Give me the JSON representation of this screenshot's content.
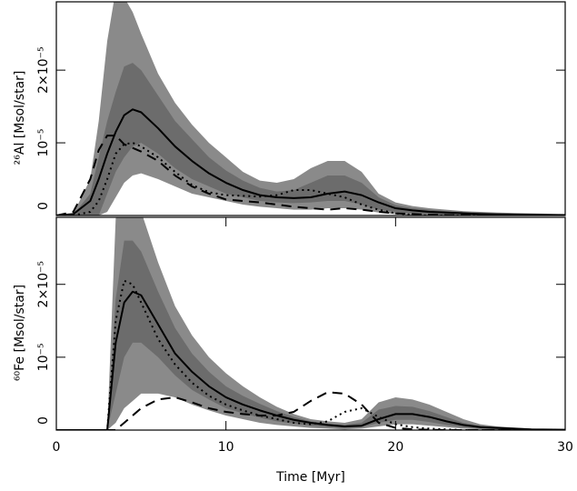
{
  "chart_data": [
    {
      "type": "line",
      "ylabel": "²⁶Al [Msol/star]",
      "x": [
        0,
        1,
        2,
        2.5,
        3,
        3.5,
        4,
        4.5,
        5,
        6,
        7,
        8,
        9,
        10,
        11,
        12,
        13,
        14,
        15,
        16,
        17,
        18,
        19,
        20,
        21,
        22,
        23,
        24,
        25,
        26,
        28,
        30
      ],
      "xlim": [
        0,
        30
      ],
      "ylim": [
        0,
        2.94e-05
      ],
      "yticks": [
        0,
        {
          "value": 1e-05,
          "label": "10⁻⁵"
        },
        {
          "value": 2e-05,
          "label": "2×10⁻⁵"
        }
      ],
      "bands": [
        {
          "color": "#8a8a8a",
          "upper": [
            0,
            2e-07,
            5e-06,
            1.3e-05,
            2.4e-05,
            3.1e-05,
            3e-05,
            2.8e-05,
            2.5e-05,
            1.95e-05,
            1.55e-05,
            1.25e-05,
            1e-05,
            8e-06,
            6e-06,
            4.8e-06,
            4.5e-06,
            5e-06,
            6.5e-06,
            7.5e-06,
            7.5e-06,
            6e-06,
            3e-06,
            1.8e-06,
            1.3e-06,
            1e-06,
            8e-07,
            6e-07,
            5e-07,
            4e-07,
            3e-07,
            2e-07
          ],
          "lower": [
            0,
            0,
            0,
            0,
            5e-07,
            2.5e-06,
            4.5e-06,
            5.5e-06,
            5.8e-06,
            5e-06,
            4e-06,
            3e-06,
            2.5e-06,
            2e-06,
            1.5e-06,
            1.2e-06,
            1e-06,
            8e-07,
            8e-07,
            1e-06,
            1e-06,
            8e-07,
            4e-07,
            2e-07,
            0,
            0,
            0,
            0,
            0,
            0,
            0,
            0
          ]
        },
        {
          "color": "#6c6c6c",
          "upper": [
            0,
            1e-07,
            3e-06,
            8e-06,
            1.3e-05,
            1.7e-05,
            2.05e-05,
            2.1e-05,
            2e-05,
            1.65e-05,
            1.3e-05,
            1.05e-05,
            8e-06,
            6.2e-06,
            4.8e-06,
            3.8e-06,
            3.3e-06,
            3.5e-06,
            4.5e-06,
            5.5e-06,
            5.5e-06,
            4.5e-06,
            2.5e-06,
            1.4e-06,
            1e-06,
            8e-07,
            6e-07,
            5e-07,
            4e-07,
            3e-07,
            2e-07,
            1e-07
          ],
          "lower": [
            0,
            0,
            0,
            0,
            3e-06,
            6e-06,
            8e-06,
            9.5e-06,
            1e-05,
            8.5e-06,
            6.5e-06,
            5e-06,
            4e-06,
            3e-06,
            2.5e-06,
            2e-06,
            1.8e-06,
            1.7e-06,
            1.8e-06,
            2e-06,
            2e-06,
            1.5e-06,
            8e-07,
            5e-07,
            3e-07,
            2e-07,
            1e-07,
            1e-07,
            1e-07,
            1e-07,
            1e-07,
            1e-07
          ]
        }
      ],
      "series": [
        {
          "color": "#000000",
          "dash": "solid",
          "values": [
            0,
            2e-07,
            2e-06,
            5e-06,
            8.5e-06,
            1.15e-05,
            1.38e-05,
            1.46e-05,
            1.42e-05,
            1.2e-05,
            9.5e-06,
            7.5e-06,
            5.8e-06,
            4.5e-06,
            3.5e-06,
            2.8e-06,
            2.5e-06,
            2.4e-06,
            2.5e-06,
            3e-06,
            3.3e-06,
            2.8e-06,
            1.8e-06,
            1e-06,
            7e-07,
            5e-07,
            4e-07,
            3e-07,
            2e-07,
            1.5e-07,
            1e-07,
            5e-08
          ]
        },
        {
          "color": "#000000",
          "dash": "dashed",
          "values": [
            0,
            5e-07,
            5e-06,
            9e-06,
            1.1e-05,
            1.1e-05,
            9.8e-06,
            9.3e-06,
            8.8e-06,
            7.5e-06,
            5.5e-06,
            4e-06,
            3e-06,
            2.2e-06,
            2e-06,
            1.8e-06,
            1.5e-06,
            1.2e-06,
            1e-06,
            8e-07,
            1e-06,
            8e-07,
            5e-07,
            3e-07,
            2e-07,
            1e-07,
            5e-08,
            5e-08,
            5e-08,
            5e-08,
            5e-08,
            5e-08
          ]
        },
        {
          "color": "#000000",
          "dash": "dotted",
          "values": [
            0,
            0,
            5e-07,
            2e-06,
            5e-06,
            8.5e-06,
            9.8e-06,
            1e-05,
            9.5e-06,
            8e-06,
            6e-06,
            4.2e-06,
            3.2e-06,
            2.8e-06,
            2.7e-06,
            2.6e-06,
            2.8e-06,
            3.5e-06,
            3.5e-06,
            3e-06,
            2.5e-06,
            1.5e-06,
            8e-07,
            3e-07,
            1e-07,
            0,
            0,
            0,
            0,
            0,
            0,
            0
          ]
        }
      ]
    },
    {
      "type": "line",
      "ylabel": "⁶⁰Fe [Msol/star]",
      "xlabel": "Time [Myr]",
      "x": [
        0,
        1,
        2,
        2.5,
        3,
        3.5,
        4,
        4.5,
        5,
        6,
        7,
        8,
        9,
        10,
        11,
        12,
        13,
        14,
        15,
        16,
        17,
        18,
        19,
        20,
        21,
        22,
        23,
        24,
        25,
        26,
        28,
        30
      ],
      "xlim": [
        0,
        30
      ],
      "xticks": [
        0,
        10,
        20,
        30
      ],
      "ylim": [
        0,
        2.92e-05
      ],
      "yticks": [
        0,
        {
          "value": 1e-05,
          "label": "10⁻⁵"
        },
        {
          "value": 2e-05,
          "label": "2×10⁻⁵"
        }
      ],
      "bands": [
        {
          "color": "#8a8a8a",
          "upper": [
            0,
            0,
            0,
            0,
            0,
            2.9e-05,
            3.5e-05,
            3.3e-05,
            3e-05,
            2.3e-05,
            1.7e-05,
            1.3e-05,
            1e-05,
            7.8e-06,
            6e-06,
            4.5e-06,
            3.2e-06,
            2.2e-06,
            1.5e-06,
            1.2e-06,
            1e-06,
            1.5e-06,
            3.8e-06,
            4.5e-06,
            4.2e-06,
            3.5e-06,
            2.5e-06,
            1.5e-06,
            8e-07,
            5e-07,
            2e-07,
            1e-07
          ],
          "lower": [
            0,
            0,
            0,
            0,
            0,
            1e-06,
            3e-06,
            4e-06,
            5e-06,
            5e-06,
            4.5e-06,
            3.5e-06,
            2.7e-06,
            2e-06,
            1.5e-06,
            1e-06,
            7e-07,
            5e-07,
            3e-07,
            2e-07,
            1e-07,
            2e-07,
            5e-07,
            8e-07,
            8e-07,
            6e-07,
            4e-07,
            2e-07,
            1e-07,
            0,
            0,
            0
          ]
        },
        {
          "color": "#6c6c6c",
          "upper": [
            0,
            0,
            0,
            0,
            0,
            1.8e-05,
            2.6e-05,
            2.6e-05,
            2.45e-05,
            1.9e-05,
            1.4e-05,
            1.05e-05,
            8e-06,
            6e-06,
            4.7e-06,
            3.6e-06,
            2.6e-06,
            1.8e-06,
            1.2e-06,
            9e-07,
            7e-07,
            1e-06,
            2.8e-06,
            3.3e-06,
            3.2e-06,
            2.6e-06,
            1.8e-06,
            1e-06,
            6e-07,
            4e-07,
            1.5e-07,
            8e-08
          ],
          "lower": [
            0,
            0,
            0,
            0,
            0,
            5e-06,
            1e-05,
            1.2e-05,
            1.2e-05,
            1e-05,
            7.5e-06,
            5.5e-06,
            4.2e-06,
            3e-06,
            2.3e-06,
            1.7e-06,
            1.2e-06,
            9e-07,
            6e-07,
            4e-07,
            3e-07,
            4e-07,
            1e-06,
            1.4e-06,
            1.4e-06,
            1.1e-06,
            7e-07,
            4e-07,
            2e-07,
            1e-07,
            0,
            0
          ]
        }
      ],
      "series": [
        {
          "color": "#000000",
          "dash": "solid",
          "values": [
            0,
            0,
            0,
            0,
            0,
            1.2e-05,
            1.75e-05,
            1.9e-05,
            1.85e-05,
            1.45e-05,
            1.05e-05,
            8e-06,
            6e-06,
            4.5e-06,
            3.5e-06,
            2.7e-06,
            2e-06,
            1.4e-06,
            1e-06,
            7e-07,
            5e-07,
            6e-07,
            1.5e-06,
            2.2e-06,
            2.2e-06,
            1.8e-06,
            1.2e-06,
            7e-07,
            4e-07,
            3e-07,
            1e-07,
            5e-08
          ]
        },
        {
          "color": "#000000",
          "dash": "dashed",
          "values": [
            0,
            0,
            0,
            0,
            0,
            0,
            1e-06,
            2e-06,
            3e-06,
            4.2e-06,
            4.5e-06,
            3.8e-06,
            3e-06,
            2.5e-06,
            2.2e-06,
            2e-06,
            2e-06,
            2.5e-06,
            4e-06,
            5.2e-06,
            5e-06,
            3.5e-06,
            1e-06,
            3e-07,
            1e-07,
            5e-08,
            0,
            0,
            0,
            0,
            0,
            0
          ]
        },
        {
          "color": "#000000",
          "dash": "dotted",
          "values": [
            0,
            0,
            0,
            0,
            0,
            1.5e-05,
            2.05e-05,
            2e-05,
            1.75e-05,
            1.25e-05,
            9e-06,
            6.5e-06,
            4.7e-06,
            3.5e-06,
            2.7e-06,
            2e-06,
            1.5e-06,
            1e-06,
            8e-07,
            1.2e-06,
            2.5e-06,
            3e-06,
            1.8e-06,
            8e-07,
            4e-07,
            2e-07,
            1e-07,
            0,
            0,
            0,
            0,
            0
          ]
        }
      ]
    }
  ]
}
